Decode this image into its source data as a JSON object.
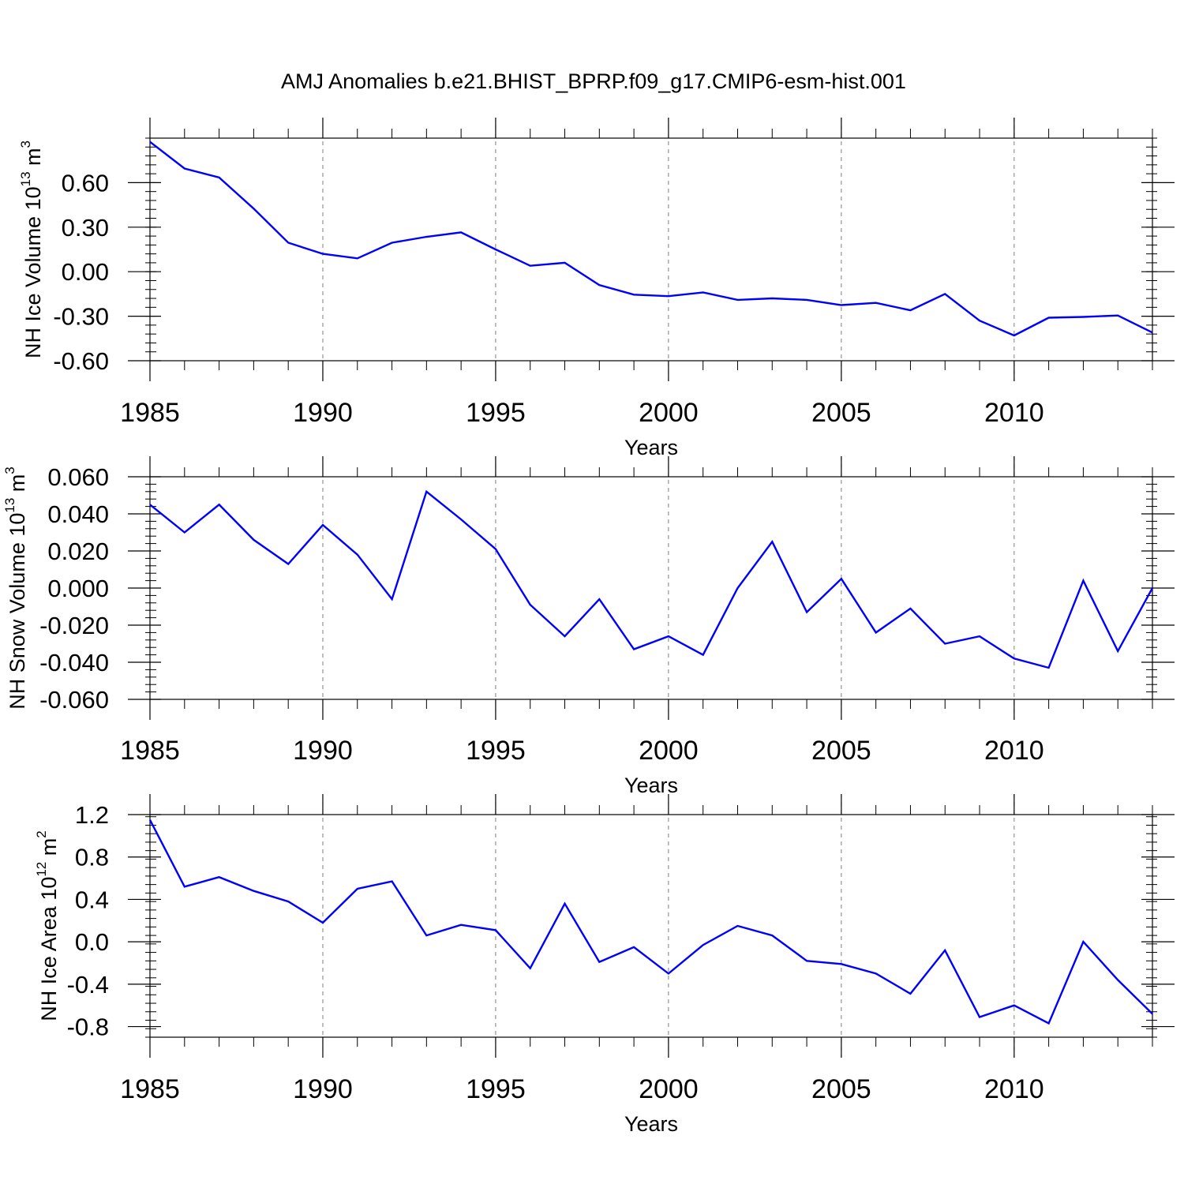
{
  "title": "AMJ Anomalies b.e21.BHIST_BPRP.f09_g17.CMIP6-esm-hist.001",
  "colors": {
    "series": "#0000ff",
    "axis": "#000000",
    "grid": "#808080",
    "background": "#ffffff"
  },
  "chart_data": [
    {
      "type": "line",
      "title": "AMJ Anomalies b.e21.BHIST_BPRP.f09_g17.CMIP6-esm-hist.001",
      "ylabel": {
        "text": "NH Ice Volume 10",
        "exp": "13",
        "unit": " m",
        "unit_exp": "3"
      },
      "xlabel": "Years",
      "xlim": [
        1985,
        2014
      ],
      "ylim": [
        -0.6,
        0.9
      ],
      "yticks": [
        -0.6,
        -0.3,
        0.0,
        0.3,
        0.6
      ],
      "ytick_labels": [
        "-0.60",
        "-0.30",
        "0.00",
        "0.30",
        "0.60"
      ],
      "yminor_step": 0.06,
      "xticks": [
        1985,
        1990,
        1995,
        2000,
        2005,
        2010
      ],
      "xtick_labels": [
        "1985",
        "1990",
        "1995",
        "2000",
        "2005",
        "2010"
      ],
      "vgrid": [
        1990,
        1995,
        2000,
        2005,
        2010
      ],
      "x": [
        1985,
        1986,
        1987,
        1988,
        1989,
        1990,
        1991,
        1992,
        1993,
        1994,
        1995,
        1996,
        1997,
        1998,
        1999,
        2000,
        2001,
        2002,
        2003,
        2004,
        2005,
        2006,
        2007,
        2008,
        2009,
        2010,
        2011,
        2012,
        2013,
        2014
      ],
      "values": [
        0.875,
        0.695,
        0.635,
        0.425,
        0.195,
        0.12,
        0.09,
        0.195,
        0.235,
        0.265,
        0.15,
        0.04,
        0.06,
        -0.09,
        -0.155,
        -0.165,
        -0.14,
        -0.19,
        -0.18,
        -0.19,
        -0.225,
        -0.21,
        -0.26,
        -0.15,
        -0.33,
        -0.43,
        -0.31,
        -0.305,
        -0.295,
        -0.41
      ]
    },
    {
      "type": "line",
      "ylabel": {
        "text": "NH Snow Volume 10",
        "exp": "13",
        "unit": " m",
        "unit_exp": "3"
      },
      "xlabel": "Years",
      "xlim": [
        1985,
        2014
      ],
      "ylim": [
        -0.06,
        0.06
      ],
      "yticks": [
        -0.06,
        -0.04,
        -0.02,
        0.0,
        0.02,
        0.04,
        0.06
      ],
      "ytick_labels": [
        "-0.060",
        "-0.040",
        "-0.020",
        "0.000",
        "0.020",
        "0.040",
        "0.060"
      ],
      "yminor_step": 0.004,
      "xticks": [
        1985,
        1990,
        1995,
        2000,
        2005,
        2010
      ],
      "xtick_labels": [
        "1985",
        "1990",
        "1995",
        "2000",
        "2005",
        "2010"
      ],
      "vgrid": [
        1990,
        1995,
        2000,
        2005,
        2010
      ],
      "x": [
        1985,
        1986,
        1987,
        1988,
        1989,
        1990,
        1991,
        1992,
        1993,
        1994,
        1995,
        1996,
        1997,
        1998,
        1999,
        2000,
        2001,
        2002,
        2003,
        2004,
        2005,
        2006,
        2007,
        2008,
        2009,
        2010,
        2011,
        2012,
        2013,
        2014
      ],
      "values": [
        0.045,
        0.03,
        0.045,
        0.026,
        0.013,
        0.034,
        0.018,
        -0.006,
        0.052,
        0.037,
        0.021,
        -0.009,
        -0.026,
        -0.006,
        -0.033,
        -0.026,
        -0.036,
        0.0,
        0.025,
        -0.013,
        0.005,
        -0.024,
        -0.011,
        -0.03,
        -0.026,
        -0.038,
        -0.043,
        0.004,
        -0.034,
        0.0
      ]
    },
    {
      "type": "line",
      "ylabel": {
        "text": "NH Ice Area 10",
        "exp": "12",
        "unit": " m",
        "unit_exp": "2"
      },
      "xlabel": "Years",
      "xlim": [
        1985,
        2014
      ],
      "ylim": [
        -0.9,
        1.2
      ],
      "yticks": [
        -0.8,
        -0.4,
        0.0,
        0.4,
        0.8,
        1.2
      ],
      "ytick_labels": [
        "-0.8",
        "-0.4",
        "0.0",
        "0.4",
        "0.8",
        "1.2"
      ],
      "yminor_step": 0.08,
      "xticks": [
        1985,
        1990,
        1995,
        2000,
        2005,
        2010
      ],
      "xtick_labels": [
        "1985",
        "1990",
        "1995",
        "2000",
        "2005",
        "2010"
      ],
      "vgrid": [
        1990,
        1995,
        2000,
        2005,
        2010
      ],
      "x": [
        1985,
        1986,
        1987,
        1988,
        1989,
        1990,
        1991,
        1992,
        1993,
        1994,
        1995,
        1996,
        1997,
        1998,
        1999,
        2000,
        2001,
        2002,
        2003,
        2004,
        2005,
        2006,
        2007,
        2008,
        2009,
        2010,
        2011,
        2012,
        2013,
        2014
      ],
      "values": [
        1.15,
        0.52,
        0.61,
        0.48,
        0.38,
        0.18,
        0.5,
        0.57,
        0.06,
        0.16,
        0.11,
        -0.25,
        0.36,
        -0.19,
        -0.05,
        -0.3,
        -0.03,
        0.15,
        0.06,
        -0.18,
        -0.21,
        -0.3,
        -0.49,
        -0.08,
        -0.71,
        -0.6,
        -0.77,
        0.0,
        -0.36,
        -0.68
      ]
    }
  ]
}
